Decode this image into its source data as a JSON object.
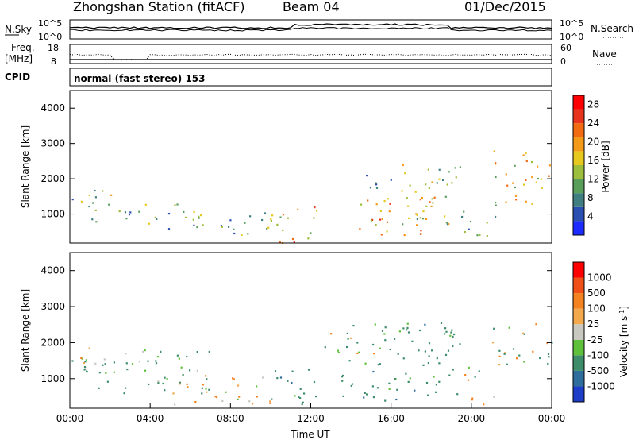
{
  "header": {
    "station": "Zhongshan Station (fitACF)",
    "beam": "Beam 04",
    "date": "01/Dec/2015"
  },
  "nsky_panel": {
    "left_label": "N.Sky",
    "left_ticks": [
      "10^5",
      "10^0"
    ],
    "right_label": "N.Search",
    "right_ticks": [
      "10^5",
      "10^0"
    ]
  },
  "freq_panel": {
    "left_label_1": "Freq.",
    "left_label_2": "[MHz]",
    "left_ticks": [
      "18",
      "8"
    ],
    "right_label": "Nave",
    "right_ticks": [
      "60",
      "0"
    ]
  },
  "cpid": {
    "label": "CPID",
    "value": "normal (fast stereo) 153"
  },
  "chart_data": [
    {
      "type": "heatmap",
      "name": "power",
      "ylabel": "Slant Range [km]",
      "xlabel": "",
      "ylim": [
        180,
        4500
      ],
      "yticks": [
        "1000",
        "2000",
        "3000",
        "4000"
      ],
      "xlim": [
        "00:00",
        "24:00"
      ],
      "colorbar": {
        "label": "Power [dB]",
        "ticks": [
          "4",
          "8",
          "12",
          "16",
          "20",
          "24",
          "28"
        ],
        "range": [
          0,
          30
        ],
        "colors": [
          "#1c2bff",
          "#2a4fb0",
          "#3f7f82",
          "#5a9e5c",
          "#9cbe3c",
          "#e6c81e",
          "#f39a1a",
          "#f26b12",
          "#e8341c",
          "#ff0000"
        ]
      },
      "echo_regions": [
        {
          "t_start": 0.0,
          "t_end": 2.5,
          "r_min": 1300,
          "r_max": 1700,
          "level": 12
        },
        {
          "t_start": 0.5,
          "t_end": 7.0,
          "r_min": 600,
          "r_max": 1300,
          "level": 9
        },
        {
          "t_start": 7.0,
          "t_end": 10.0,
          "r_min": 400,
          "r_max": 1100,
          "level": 10
        },
        {
          "t_start": 10.0,
          "t_end": 12.3,
          "r_min": 200,
          "r_max": 1300,
          "level": 18
        },
        {
          "t_start": 11.0,
          "t_end": 12.0,
          "r_min": 200,
          "r_max": 400,
          "level": 26
        },
        {
          "t_start": 14.0,
          "t_end": 16.0,
          "r_min": 1700,
          "r_max": 2300,
          "level": 8
        },
        {
          "t_start": 14.3,
          "t_end": 18.5,
          "r_min": 400,
          "r_max": 1500,
          "level": 20
        },
        {
          "t_start": 16.5,
          "t_end": 19.5,
          "r_min": 700,
          "r_max": 2500,
          "level": 14
        },
        {
          "t_start": 19.5,
          "t_end": 21.2,
          "r_min": 300,
          "r_max": 1400,
          "level": 12
        },
        {
          "t_start": 21.0,
          "t_end": 24.0,
          "r_min": 1300,
          "r_max": 2800,
          "level": 17
        }
      ]
    },
    {
      "type": "heatmap",
      "name": "velocity",
      "ylabel": "Slant Range [km]",
      "xlabel": "Time UT",
      "ylim": [
        180,
        4500
      ],
      "yticks": [
        "1000",
        "2000",
        "3000",
        "4000"
      ],
      "xlim": [
        "00:00",
        "24:00"
      ],
      "xticks": [
        "00:00",
        "04:00",
        "08:00",
        "12:00",
        "16:00",
        "20:00",
        "00:00"
      ],
      "colorbar": {
        "label": "Velocity [m s",
        "label_sup": "-1",
        "label_end": "]",
        "ticks": [
          "1000",
          "500",
          "100",
          "25",
          "-25",
          "-100",
          "-500",
          "-1000"
        ],
        "colors": [
          "#1e3ec8",
          "#2f6e9c",
          "#3e8d6a",
          "#5fc03c",
          "#c8c8c0",
          "#f2a84c",
          "#f58220",
          "#f05018",
          "#ff0000"
        ]
      },
      "echo_regions": [
        {
          "t_start": 0.0,
          "t_end": 2.5,
          "r_min": 1300,
          "r_max": 1700,
          "level": 0
        },
        {
          "t_start": 0.5,
          "t_end": 7.0,
          "r_min": 600,
          "r_max": 1900,
          "level": -200
        },
        {
          "t_start": 5.0,
          "t_end": 10.0,
          "r_min": 300,
          "r_max": 1100,
          "level": 150
        },
        {
          "t_start": 10.0,
          "t_end": 12.3,
          "r_min": 200,
          "r_max": 1300,
          "level": -300
        },
        {
          "t_start": 12.5,
          "t_end": 16.0,
          "r_min": 1700,
          "r_max": 2300,
          "level": 0
        },
        {
          "t_start": 13.5,
          "t_end": 19.5,
          "r_min": 400,
          "r_max": 2600,
          "level": -300
        },
        {
          "t_start": 19.5,
          "t_end": 21.2,
          "r_min": 300,
          "r_max": 1400,
          "level": 100
        },
        {
          "t_start": 21.0,
          "t_end": 24.0,
          "r_min": 1400,
          "r_max": 2600,
          "level": 0
        }
      ]
    }
  ]
}
